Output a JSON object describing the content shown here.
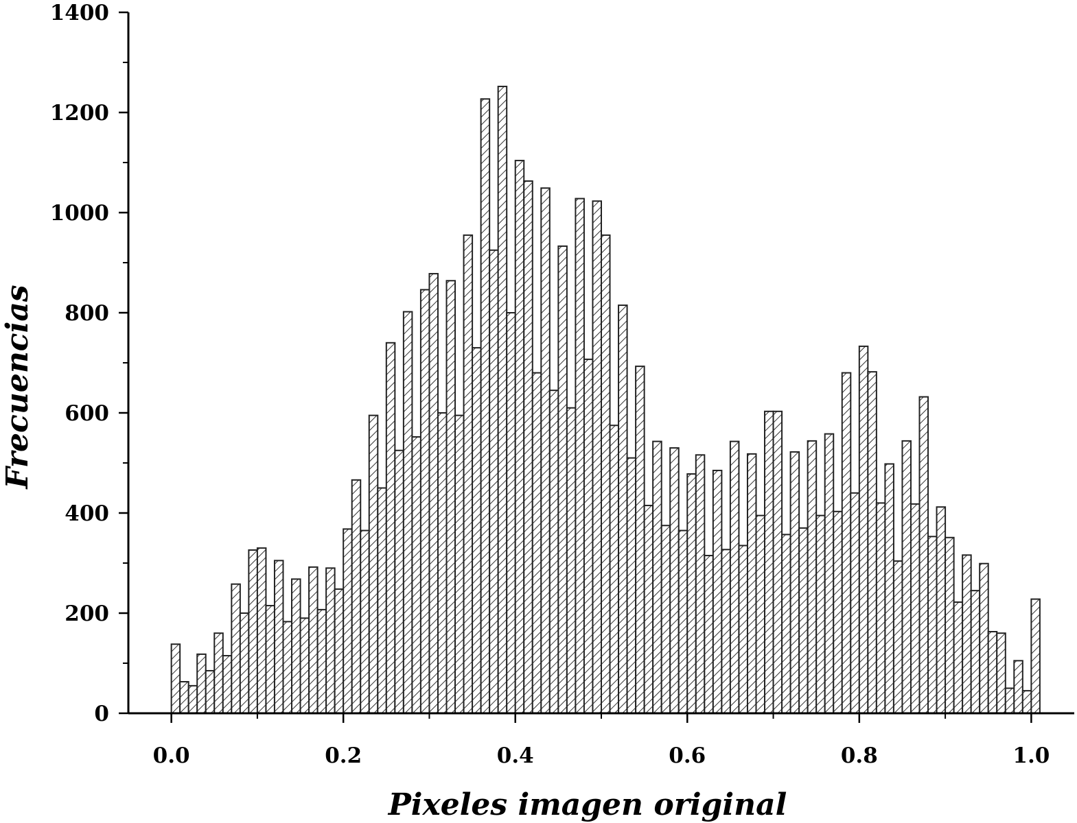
{
  "chart_data": {
    "type": "bar",
    "subtype": "histogram",
    "xlabel": "Pixeles imagen original",
    "ylabel": "Frecuencias",
    "xlim": [
      -0.05,
      1.05
    ],
    "ylim": [
      0,
      1400
    ],
    "x_ticks": [
      "0.0",
      "0.2",
      "0.4",
      "0.6",
      "0.8",
      "1.0"
    ],
    "y_ticks": [
      "0",
      "200",
      "400",
      "600",
      "800",
      "1000",
      "1200",
      "1400"
    ],
    "y_minor_step": 100,
    "grid": false,
    "legend": "none",
    "bar_fill": "hatched diagonal",
    "bin_width": 0.01,
    "x": [
      0.0,
      0.01,
      0.02,
      0.03,
      0.04,
      0.05,
      0.06,
      0.07,
      0.08,
      0.09,
      0.1,
      0.11,
      0.12,
      0.13,
      0.14,
      0.15,
      0.16,
      0.17,
      0.18,
      0.19,
      0.2,
      0.21,
      0.22,
      0.23,
      0.24,
      0.25,
      0.26,
      0.27,
      0.28,
      0.29,
      0.3,
      0.31,
      0.32,
      0.33,
      0.34,
      0.35,
      0.36,
      0.37,
      0.38,
      0.39,
      0.4,
      0.41,
      0.42,
      0.43,
      0.44,
      0.45,
      0.46,
      0.47,
      0.48,
      0.49,
      0.5,
      0.51,
      0.52,
      0.53,
      0.54,
      0.55,
      0.56,
      0.57,
      0.58,
      0.59,
      0.6,
      0.61,
      0.62,
      0.63,
      0.64,
      0.65,
      0.66,
      0.67,
      0.68,
      0.69,
      0.7,
      0.71,
      0.72,
      0.73,
      0.74,
      0.75,
      0.76,
      0.77,
      0.78,
      0.79,
      0.8,
      0.81,
      0.82,
      0.83,
      0.84,
      0.85,
      0.86,
      0.87,
      0.88,
      0.89,
      0.9,
      0.91,
      0.92,
      0.93,
      0.94,
      0.95,
      0.96,
      0.97,
      0.98,
      0.99,
      1.0
    ],
    "values": [
      138,
      63,
      55,
      118,
      85,
      160,
      115,
      258,
      200,
      326,
      330,
      215,
      305,
      183,
      268,
      190,
      292,
      207,
      290,
      248,
      368,
      466,
      365,
      595,
      450,
      740,
      525,
      802,
      552,
      846,
      878,
      600,
      864,
      595,
      955,
      730,
      1227,
      925,
      1252,
      800,
      1104,
      1063,
      680,
      1049,
      645,
      933,
      610,
      1028,
      707,
      1023,
      955,
      575,
      815,
      510,
      693,
      415,
      543,
      375,
      530,
      365,
      478,
      516,
      315,
      485,
      327,
      543,
      335,
      518,
      395,
      603,
      603,
      357,
      522,
      370,
      544,
      395,
      558,
      403,
      680,
      440,
      733,
      682,
      420,
      498,
      304,
      544,
      418,
      632,
      353,
      412,
      351,
      222,
      316,
      245,
      299,
      163,
      160,
      50,
      105,
      45,
      228
    ]
  }
}
